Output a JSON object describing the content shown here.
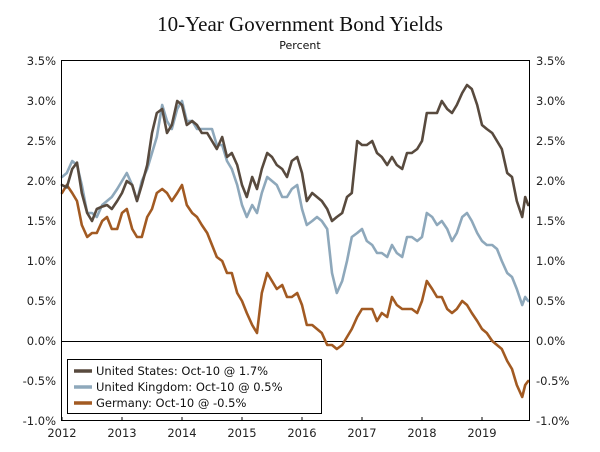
{
  "chart_data": {
    "type": "line",
    "title": "10-Year Government Bond Yields",
    "subtitle": "Percent",
    "xlabel": "",
    "ylabel": "",
    "xlim": [
      2012.0,
      2019.8
    ],
    "ylim": [
      -1.0,
      3.5
    ],
    "x_ticks": [
      2012,
      2013,
      2014,
      2015,
      2016,
      2017,
      2018,
      2019
    ],
    "x_tick_labels": [
      "2012",
      "2013",
      "2014",
      "2015",
      "2016",
      "2017",
      "2018",
      "2019"
    ],
    "y_ticks": [
      -1.0,
      -0.5,
      0.0,
      0.5,
      1.0,
      1.5,
      2.0,
      2.5,
      3.0,
      3.5
    ],
    "y_tick_labels": [
      "-1.0%",
      "-0.5%",
      "0.0%",
      "0.5%",
      "1.0%",
      "1.5%",
      "2.0%",
      "2.5%",
      "3.0%",
      "3.5%"
    ],
    "legend_position": "bottom-left",
    "series": [
      {
        "name": "United States: Oct-10 @ 1.7%",
        "color": "#584a3e",
        "x": [
          2012.0,
          2012.08,
          2012.17,
          2012.25,
          2012.33,
          2012.42,
          2012.5,
          2012.58,
          2012.67,
          2012.75,
          2012.83,
          2012.92,
          2013.0,
          2013.08,
          2013.17,
          2013.25,
          2013.33,
          2013.42,
          2013.5,
          2013.58,
          2013.67,
          2013.75,
          2013.83,
          2013.92,
          2014.0,
          2014.08,
          2014.17,
          2014.25,
          2014.33,
          2014.42,
          2014.5,
          2014.58,
          2014.67,
          2014.75,
          2014.83,
          2014.92,
          2015.0,
          2015.08,
          2015.17,
          2015.25,
          2015.33,
          2015.42,
          2015.5,
          2015.58,
          2015.67,
          2015.75,
          2015.83,
          2015.92,
          2016.0,
          2016.08,
          2016.17,
          2016.25,
          2016.33,
          2016.42,
          2016.5,
          2016.58,
          2016.67,
          2016.75,
          2016.83,
          2016.92,
          2017.0,
          2017.08,
          2017.17,
          2017.25,
          2017.33,
          2017.42,
          2017.5,
          2017.58,
          2017.67,
          2017.75,
          2017.83,
          2017.92,
          2018.0,
          2018.08,
          2018.17,
          2018.25,
          2018.33,
          2018.42,
          2018.5,
          2018.58,
          2018.67,
          2018.75,
          2018.83,
          2018.92,
          2019.0,
          2019.08,
          2019.17,
          2019.25,
          2019.33,
          2019.42,
          2019.5,
          2019.58,
          2019.67,
          2019.72,
          2019.77
        ],
        "values": [
          1.95,
          1.92,
          2.15,
          2.23,
          1.85,
          1.6,
          1.5,
          1.65,
          1.68,
          1.7,
          1.65,
          1.75,
          1.85,
          2.0,
          1.95,
          1.75,
          1.95,
          2.2,
          2.6,
          2.85,
          2.9,
          2.6,
          2.7,
          3.0,
          2.95,
          2.7,
          2.75,
          2.7,
          2.6,
          2.6,
          2.5,
          2.4,
          2.55,
          2.3,
          2.35,
          2.2,
          1.95,
          1.8,
          2.05,
          1.9,
          2.15,
          2.35,
          2.3,
          2.2,
          2.15,
          2.05,
          2.25,
          2.3,
          2.1,
          1.75,
          1.85,
          1.8,
          1.75,
          1.65,
          1.5,
          1.55,
          1.6,
          1.8,
          1.85,
          2.5,
          2.45,
          2.45,
          2.5,
          2.35,
          2.3,
          2.2,
          2.3,
          2.2,
          2.15,
          2.35,
          2.35,
          2.4,
          2.5,
          2.85,
          2.85,
          2.85,
          3.0,
          2.9,
          2.85,
          2.95,
          3.1,
          3.2,
          3.15,
          2.95,
          2.7,
          2.65,
          2.6,
          2.5,
          2.4,
          2.1,
          2.05,
          1.75,
          1.55,
          1.8,
          1.7
        ]
      },
      {
        "name": "United Kingdom: Oct-10 @ 0.5%",
        "color": "#8ea8bb",
        "x": [
          2012.0,
          2012.08,
          2012.17,
          2012.25,
          2012.33,
          2012.42,
          2012.5,
          2012.58,
          2012.67,
          2012.75,
          2012.83,
          2012.92,
          2013.0,
          2013.08,
          2013.17,
          2013.25,
          2013.33,
          2013.42,
          2013.5,
          2013.58,
          2013.67,
          2013.75,
          2013.83,
          2013.92,
          2014.0,
          2014.08,
          2014.17,
          2014.25,
          2014.33,
          2014.42,
          2014.5,
          2014.58,
          2014.67,
          2014.75,
          2014.83,
          2014.92,
          2015.0,
          2015.08,
          2015.17,
          2015.25,
          2015.33,
          2015.42,
          2015.5,
          2015.58,
          2015.67,
          2015.75,
          2015.83,
          2015.92,
          2016.0,
          2016.08,
          2016.17,
          2016.25,
          2016.33,
          2016.42,
          2016.5,
          2016.58,
          2016.67,
          2016.75,
          2016.83,
          2016.92,
          2017.0,
          2017.08,
          2017.17,
          2017.25,
          2017.33,
          2017.42,
          2017.5,
          2017.58,
          2017.67,
          2017.75,
          2017.83,
          2017.92,
          2018.0,
          2018.08,
          2018.17,
          2018.25,
          2018.33,
          2018.42,
          2018.5,
          2018.58,
          2018.67,
          2018.75,
          2018.83,
          2018.92,
          2019.0,
          2019.08,
          2019.17,
          2019.25,
          2019.33,
          2019.42,
          2019.5,
          2019.58,
          2019.67,
          2019.72,
          2019.77
        ],
        "values": [
          2.05,
          2.1,
          2.25,
          2.2,
          1.95,
          1.6,
          1.6,
          1.55,
          1.7,
          1.75,
          1.8,
          1.9,
          2.0,
          2.1,
          1.95,
          1.75,
          2.0,
          2.15,
          2.35,
          2.55,
          2.95,
          2.75,
          2.65,
          2.9,
          3.0,
          2.75,
          2.75,
          2.65,
          2.65,
          2.65,
          2.65,
          2.45,
          2.45,
          2.25,
          2.15,
          1.95,
          1.7,
          1.55,
          1.7,
          1.6,
          1.85,
          2.05,
          2.0,
          1.95,
          1.8,
          1.8,
          1.9,
          1.95,
          1.65,
          1.45,
          1.5,
          1.55,
          1.5,
          1.4,
          0.85,
          0.6,
          0.75,
          1.0,
          1.3,
          1.35,
          1.4,
          1.25,
          1.2,
          1.1,
          1.1,
          1.05,
          1.2,
          1.1,
          1.05,
          1.3,
          1.3,
          1.25,
          1.3,
          1.6,
          1.55,
          1.45,
          1.5,
          1.4,
          1.25,
          1.35,
          1.55,
          1.6,
          1.5,
          1.35,
          1.25,
          1.2,
          1.2,
          1.15,
          1.0,
          0.85,
          0.8,
          0.65,
          0.45,
          0.55,
          0.5
        ]
      },
      {
        "name": "Germany: Oct-10 @ -0.5%",
        "color": "#a25a22",
        "x": [
          2012.0,
          2012.08,
          2012.17,
          2012.25,
          2012.33,
          2012.42,
          2012.5,
          2012.58,
          2012.67,
          2012.75,
          2012.83,
          2012.92,
          2013.0,
          2013.08,
          2013.17,
          2013.25,
          2013.33,
          2013.42,
          2013.5,
          2013.58,
          2013.67,
          2013.75,
          2013.83,
          2013.92,
          2014.0,
          2014.08,
          2014.17,
          2014.25,
          2014.33,
          2014.42,
          2014.5,
          2014.58,
          2014.67,
          2014.75,
          2014.83,
          2014.92,
          2015.0,
          2015.08,
          2015.17,
          2015.25,
          2015.33,
          2015.42,
          2015.5,
          2015.58,
          2015.67,
          2015.75,
          2015.83,
          2015.92,
          2016.0,
          2016.08,
          2016.17,
          2016.25,
          2016.33,
          2016.42,
          2016.5,
          2016.58,
          2016.67,
          2016.75,
          2016.83,
          2016.92,
          2017.0,
          2017.08,
          2017.17,
          2017.25,
          2017.33,
          2017.42,
          2017.5,
          2017.58,
          2017.67,
          2017.75,
          2017.83,
          2017.92,
          2018.0,
          2018.08,
          2018.17,
          2018.25,
          2018.33,
          2018.42,
          2018.5,
          2018.58,
          2018.67,
          2018.75,
          2018.83,
          2018.92,
          2019.0,
          2019.08,
          2019.17,
          2019.25,
          2019.33,
          2019.42,
          2019.5,
          2019.58,
          2019.67,
          2019.72,
          2019.77
        ],
        "values": [
          1.85,
          1.95,
          1.85,
          1.75,
          1.45,
          1.3,
          1.35,
          1.35,
          1.5,
          1.55,
          1.4,
          1.4,
          1.6,
          1.65,
          1.4,
          1.3,
          1.3,
          1.55,
          1.65,
          1.85,
          1.9,
          1.85,
          1.75,
          1.85,
          1.95,
          1.7,
          1.6,
          1.55,
          1.45,
          1.35,
          1.2,
          1.05,
          1.0,
          0.85,
          0.85,
          0.6,
          0.5,
          0.35,
          0.2,
          0.1,
          0.6,
          0.85,
          0.75,
          0.65,
          0.7,
          0.55,
          0.55,
          0.6,
          0.45,
          0.2,
          0.2,
          0.15,
          0.1,
          -0.05,
          -0.05,
          -0.1,
          -0.05,
          0.05,
          0.15,
          0.3,
          0.4,
          0.4,
          0.4,
          0.25,
          0.35,
          0.3,
          0.55,
          0.45,
          0.4,
          0.4,
          0.4,
          0.35,
          0.5,
          0.75,
          0.65,
          0.55,
          0.55,
          0.4,
          0.35,
          0.4,
          0.5,
          0.45,
          0.35,
          0.25,
          0.15,
          0.1,
          0.0,
          -0.05,
          -0.1,
          -0.25,
          -0.35,
          -0.55,
          -0.7,
          -0.55,
          -0.5
        ]
      }
    ]
  }
}
